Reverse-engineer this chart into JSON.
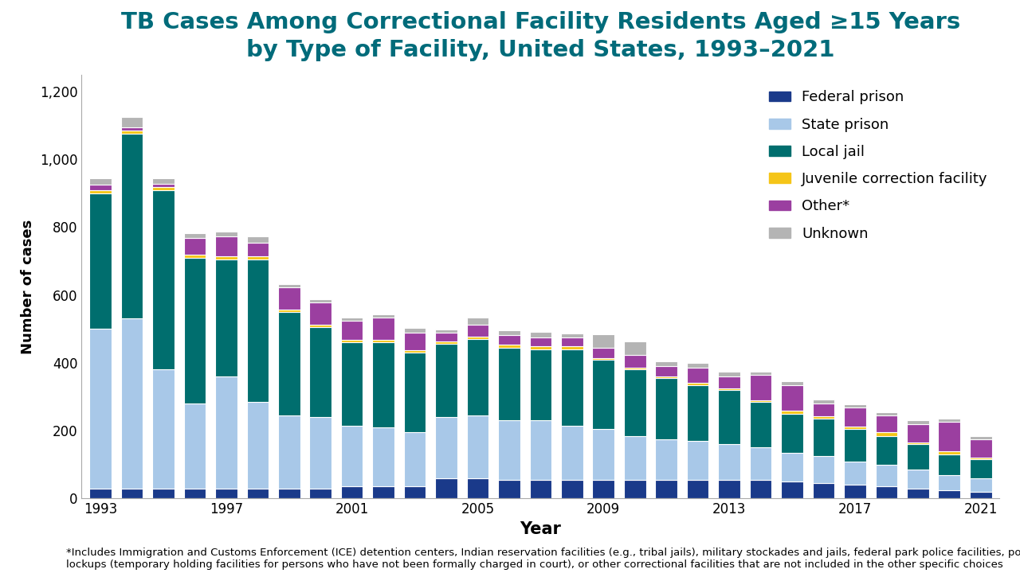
{
  "years": [
    1993,
    1994,
    1995,
    1996,
    1997,
    1998,
    1999,
    2000,
    2001,
    2002,
    2003,
    2004,
    2005,
    2006,
    2007,
    2008,
    2009,
    2010,
    2011,
    2012,
    2013,
    2014,
    2015,
    2016,
    2017,
    2018,
    2019,
    2020,
    2021
  ],
  "federal_prison": [
    30,
    30,
    30,
    30,
    30,
    30,
    30,
    30,
    35,
    35,
    35,
    60,
    60,
    55,
    55,
    55,
    55,
    55,
    55,
    55,
    55,
    55,
    50,
    45,
    40,
    35,
    30,
    25,
    20
  ],
  "state_prison": [
    470,
    500,
    350,
    250,
    330,
    255,
    215,
    210,
    180,
    175,
    160,
    180,
    185,
    175,
    175,
    160,
    150,
    130,
    120,
    115,
    105,
    95,
    85,
    80,
    70,
    65,
    55,
    45,
    40
  ],
  "local_jail": [
    400,
    545,
    530,
    430,
    345,
    420,
    305,
    265,
    245,
    250,
    235,
    215,
    225,
    215,
    210,
    225,
    205,
    195,
    180,
    165,
    160,
    135,
    115,
    110,
    95,
    85,
    75,
    60,
    55
  ],
  "juvenile": [
    10,
    10,
    8,
    8,
    8,
    8,
    8,
    8,
    8,
    8,
    8,
    8,
    8,
    8,
    8,
    8,
    5,
    5,
    5,
    5,
    5,
    5,
    10,
    8,
    8,
    10,
    5,
    10,
    5
  ],
  "other": [
    15,
    10,
    10,
    50,
    60,
    40,
    65,
    65,
    55,
    65,
    50,
    25,
    35,
    28,
    28,
    28,
    30,
    38,
    30,
    45,
    35,
    75,
    75,
    38,
    55,
    50,
    55,
    85,
    55
  ],
  "unknown": [
    20,
    30,
    15,
    15,
    15,
    20,
    10,
    10,
    10,
    10,
    15,
    10,
    20,
    15,
    15,
    10,
    40,
    40,
    15,
    15,
    15,
    10,
    10,
    10,
    10,
    10,
    10,
    10,
    10
  ],
  "colors": {
    "federal_prison": "#1a3a8a",
    "state_prison": "#a8c8e8",
    "local_jail": "#006e6e",
    "juvenile": "#f5c518",
    "other": "#9b3fa0",
    "unknown": "#b4b4b4"
  },
  "labels": {
    "federal_prison": "Federal prison",
    "state_prison": "State prison",
    "local_jail": "Local jail",
    "juvenile": "Juvenile correction facility",
    "other": "Other*",
    "unknown": "Unknown"
  },
  "title_line1": "TB Cases Among Correctional Facility Residents Aged ≥15 Years",
  "title_line2": "by Type of Facility, United States, 1993–2021",
  "xlabel": "Year",
  "ylabel": "Number of cases",
  "ylim": [
    0,
    1250
  ],
  "yticks": [
    0,
    200,
    400,
    600,
    800,
    1000,
    1200
  ],
  "footnote_line1": "*Includes Immigration and Customs Enforcement (ICE) detention centers, Indian reservation facilities (e.g., tribal jails), military stockades and jails, federal park police facilities, police",
  "footnote_line2": "lockups (temporary holding facilities for persons who have not been formally charged in court), or other correctional facilities that are not included in the other specific choices",
  "title_color": "#006b7a",
  "title_fontsize": 21,
  "axis_label_fontsize": 13,
  "tick_fontsize": 12,
  "legend_fontsize": 13,
  "footnote_fontsize": 9.5,
  "bar_width": 0.7
}
